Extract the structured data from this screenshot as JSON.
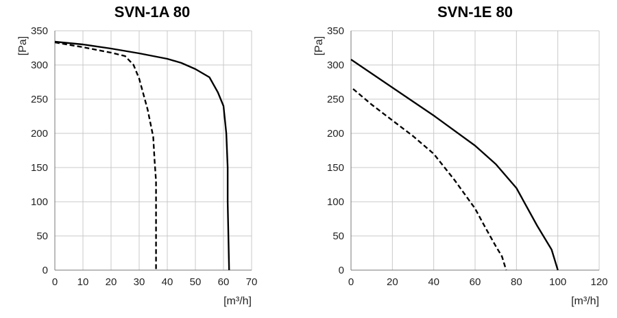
{
  "chart_data": [
    {
      "type": "line",
      "title": "SVN-1A 80",
      "xlabel": "[m³/h]",
      "ylabel": "[Pa]",
      "xlim": [
        0,
        70
      ],
      "ylim": [
        0,
        350
      ],
      "xticks": [
        0,
        10,
        20,
        30,
        40,
        50,
        60,
        70
      ],
      "yticks": [
        0,
        50,
        100,
        150,
        200,
        250,
        300,
        350
      ],
      "grid": true,
      "series": [
        {
          "style": "solid",
          "color": "#000000",
          "x": [
            0,
            10,
            20,
            30,
            40,
            45,
            50,
            55,
            58,
            60,
            61,
            61.5,
            61.5,
            61.5,
            62
          ],
          "y": [
            334,
            330,
            324,
            317,
            309,
            303,
            294,
            282,
            260,
            240,
            200,
            150,
            140,
            100,
            0
          ]
        },
        {
          "style": "dashed",
          "color": "#000000",
          "x": [
            0,
            10,
            20,
            25,
            28,
            30,
            33,
            35,
            35.5,
            36,
            36,
            36
          ],
          "y": [
            333,
            326,
            318,
            313,
            300,
            280,
            235,
            195,
            160,
            130,
            50,
            0
          ]
        }
      ]
    },
    {
      "type": "line",
      "title": "SVN-1E 80",
      "xlabel": "[m³/h]",
      "ylabel": "[Pa]",
      "xlim": [
        0,
        120
      ],
      "ylim": [
        0,
        350
      ],
      "xticks": [
        0,
        20,
        40,
        60,
        80,
        100,
        120
      ],
      "yticks": [
        0,
        50,
        100,
        150,
        200,
        250,
        300,
        350
      ],
      "grid": true,
      "series": [
        {
          "style": "solid",
          "color": "#000000",
          "x": [
            0,
            20,
            40,
            60,
            70,
            80,
            90,
            97,
            100
          ],
          "y": [
            308,
            267,
            226,
            182,
            155,
            120,
            65,
            30,
            0
          ]
        },
        {
          "style": "dashed",
          "color": "#000000",
          "x": [
            1,
            10,
            20,
            30,
            40,
            50,
            60,
            65,
            70,
            73,
            75
          ],
          "y": [
            265,
            242,
            219,
            196,
            170,
            132,
            90,
            62,
            35,
            20,
            0
          ]
        }
      ]
    }
  ]
}
